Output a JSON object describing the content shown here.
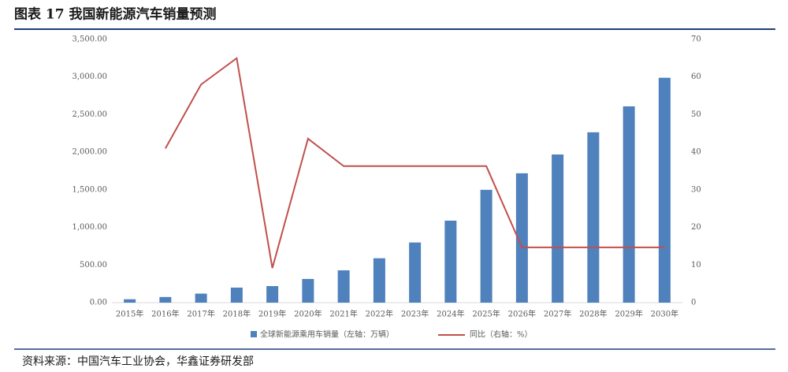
{
  "title": "图表 17 我国新能源汽车销量预测",
  "source": "资料来源：中国汽车工业协会，华鑫证券研发部",
  "chart_data": {
    "type": "bar-line",
    "categories": [
      "2015年",
      "2016年",
      "2017年",
      "2018年",
      "2019年",
      "2020年",
      "2021年",
      "2022年",
      "2023年",
      "2024年",
      "2025年",
      "2026年",
      "2027年",
      "2028年",
      "2029年",
      "2030年"
    ],
    "series": [
      {
        "name": "全球新能源乘用车销量（左轴：万辆）",
        "type": "bar",
        "color": "#4f81bd",
        "values": [
          45,
          75,
          120,
          200,
          220,
          315,
          430,
          590,
          800,
          1090,
          1500,
          1720,
          1970,
          2265,
          2610,
          2990
        ]
      },
      {
        "name": "同比（右轴：%）",
        "type": "line",
        "axis": "y2",
        "color": "#c0504d",
        "values": [
          null,
          41,
          58,
          65,
          9.2,
          43.6,
          36.3,
          36.3,
          36.3,
          36.3,
          36.3,
          14.7,
          14.7,
          14.7,
          14.7,
          14.7
        ]
      }
    ],
    "ylim": [
      0,
      3500
    ],
    "yticks": [
      {
        "value": 0,
        "label": "0.00"
      },
      {
        "value": 500,
        "label": "500.00"
      },
      {
        "value": 1000,
        "label": "1,000.00"
      },
      {
        "value": 1500,
        "label": "1,500.00"
      },
      {
        "value": 2000,
        "label": "2,000.00"
      },
      {
        "value": 2500,
        "label": "2,500.00"
      },
      {
        "value": 3000,
        "label": "3,000.00"
      },
      {
        "value": 3500,
        "label": "3,500.00"
      }
    ],
    "y2lim": [
      0,
      70
    ],
    "y2ticks": [
      0,
      10,
      20,
      30,
      40,
      50,
      60,
      70
    ],
    "legend": "bottom"
  }
}
